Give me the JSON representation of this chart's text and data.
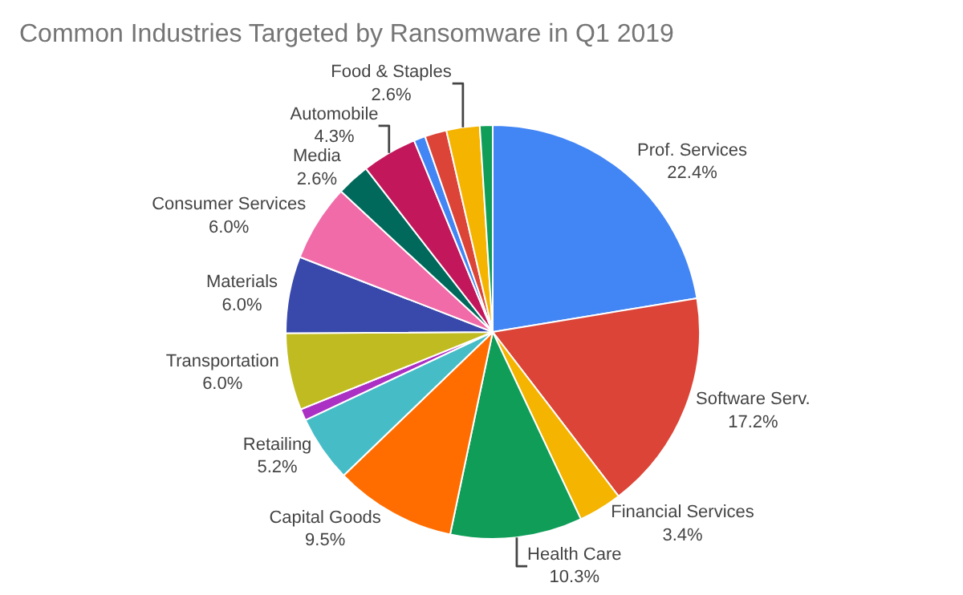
{
  "chart_data": {
    "type": "pie",
    "title": "Common Industries Targeted by Ransomware in Q1 2019",
    "categories": [
      "Prof. Services",
      "Software Serv.",
      "Financial Services",
      "Health Care",
      "Capital Goods",
      "Retailing",
      null,
      "Transportation",
      "Materials",
      "Consumer Services",
      "Media",
      "Automobile",
      null,
      null,
      "Food & Staples",
      null
    ],
    "values": [
      22.4,
      17.2,
      3.4,
      10.3,
      9.5,
      5.2,
      0.9,
      6.0,
      6.0,
      6.0,
      2.6,
      4.3,
      0.9,
      1.7,
      2.6,
      1.0
    ],
    "value_labels": [
      "22.4%",
      "17.2%",
      "3.4%",
      "10.3%",
      "9.5%",
      "5.2%",
      null,
      "6.0%",
      "6.0%",
      "6.0%",
      "2.6%",
      "4.3%",
      null,
      null,
      "2.6%",
      null
    ],
    "colors": [
      "#4285f4",
      "#db4437",
      "#f4b400",
      "#0f9d58",
      "#ff6d01",
      "#46bdc6",
      "#ab30c4",
      "#c0bb20",
      "#3949ab",
      "#f06ba8",
      "#00695c",
      "#c2185b",
      "#4285f4",
      "#db4437",
      "#f4b400",
      "#0f9d58"
    ],
    "legend": false
  }
}
